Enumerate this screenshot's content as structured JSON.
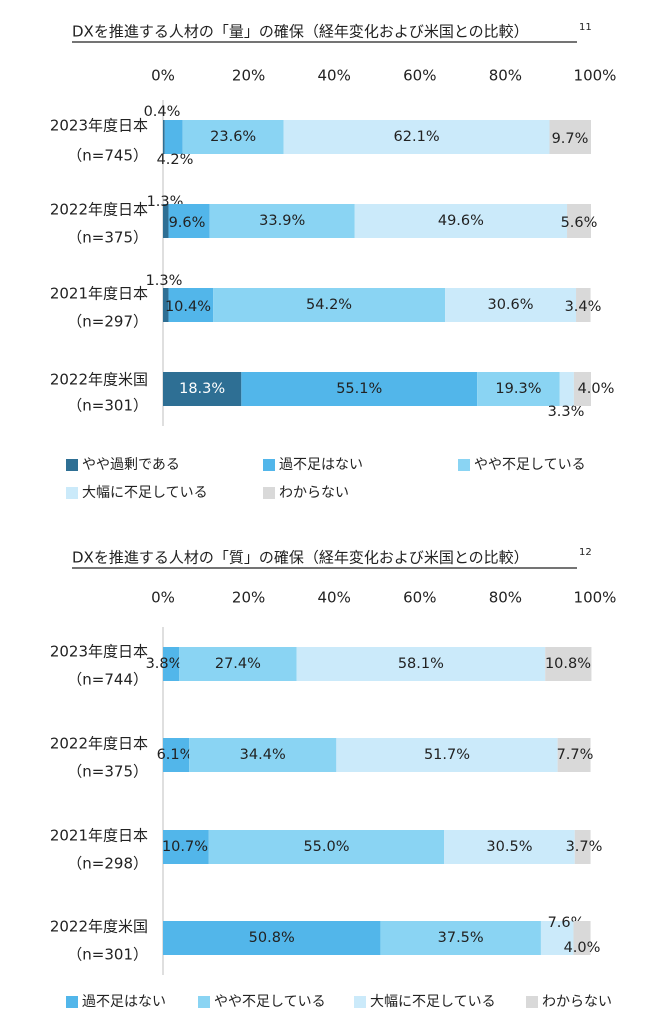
{
  "chart_data": [
    {
      "type": "bar",
      "orientation": "horizontal",
      "stacked": true,
      "title": "DXを推進する人材の「量」の確保（経年変化および米国との比較）",
      "footnote": "11",
      "xlim": [
        0,
        100
      ],
      "x_ticks": [
        "0%",
        "20%",
        "40%",
        "60%",
        "80%",
        "100%"
      ],
      "categories": [
        "2023年度日本",
        "2022年度日本",
        "2021年度日本",
        "2022年度米国"
      ],
      "sample_sizes": [
        "（n=745）",
        "（n=375）",
        "（n=297）",
        "（n=301）"
      ],
      "series": [
        {
          "name": "やや過剰である",
          "color": "#2e6f94",
          "values": [
            0.4,
            1.3,
            1.3,
            18.3
          ],
          "labels": [
            "0.4%",
            "1.3%",
            "1.3%",
            "18.3%"
          ]
        },
        {
          "name": "過不足はない",
          "color": "#52b6ea",
          "values": [
            4.2,
            9.6,
            10.4,
            55.1
          ],
          "labels": [
            "4.2%",
            "9.6%",
            "10.4%",
            "55.1%"
          ]
        },
        {
          "name": "やや不足している",
          "color": "#8ad4f3",
          "values": [
            23.6,
            33.9,
            54.2,
            19.3
          ],
          "labels": [
            "23.6%",
            "33.9%",
            "54.2%",
            "19.3%"
          ]
        },
        {
          "name": "大幅に不足している",
          "color": "#cbeafa",
          "values": [
            62.1,
            49.6,
            30.6,
            3.3
          ],
          "labels": [
            "62.1%",
            "49.6%",
            "30.6%",
            "3.3%"
          ]
        },
        {
          "name": "わからない",
          "color": "#d9d9d9",
          "values": [
            9.7,
            5.6,
            3.4,
            4.0
          ],
          "labels": [
            "9.7%",
            "5.6%",
            "3.4%",
            "4.0%"
          ]
        }
      ],
      "legend_position": "bottom"
    },
    {
      "type": "bar",
      "orientation": "horizontal",
      "stacked": true,
      "title": "DXを推進する人材の「質」の確保（経年変化および米国との比較）",
      "footnote": "12",
      "xlim": [
        0,
        100
      ],
      "x_ticks": [
        "0%",
        "20%",
        "40%",
        "60%",
        "80%",
        "100%"
      ],
      "categories": [
        "2023年度日本",
        "2022年度日本",
        "2021年度日本",
        "2022年度米国"
      ],
      "sample_sizes": [
        "（n=744）",
        "（n=375）",
        "（n=298）",
        "（n=301）"
      ],
      "series": [
        {
          "name": "過不足はない",
          "color": "#52b6ea",
          "values": [
            3.8,
            6.1,
            10.7,
            50.8
          ],
          "labels": [
            "3.8%",
            "6.1%",
            "10.7%",
            "50.8%"
          ]
        },
        {
          "name": "やや不足している",
          "color": "#8ad4f3",
          "values": [
            27.4,
            34.4,
            55.0,
            37.5
          ],
          "labels": [
            "27.4%",
            "34.4%",
            "55.0%",
            "37.5%"
          ]
        },
        {
          "name": "大幅に不足している",
          "color": "#cbeafa",
          "values": [
            58.1,
            51.7,
            30.5,
            7.6
          ],
          "labels": [
            "58.1%",
            "51.7%",
            "30.5%",
            "7.6%"
          ]
        },
        {
          "name": "わからない",
          "color": "#d9d9d9",
          "values": [
            10.8,
            7.7,
            3.7,
            4.0
          ],
          "labels": [
            "10.8%",
            "7.7%",
            "3.7%",
            "4.0%"
          ]
        }
      ],
      "legend_position": "bottom"
    }
  ]
}
